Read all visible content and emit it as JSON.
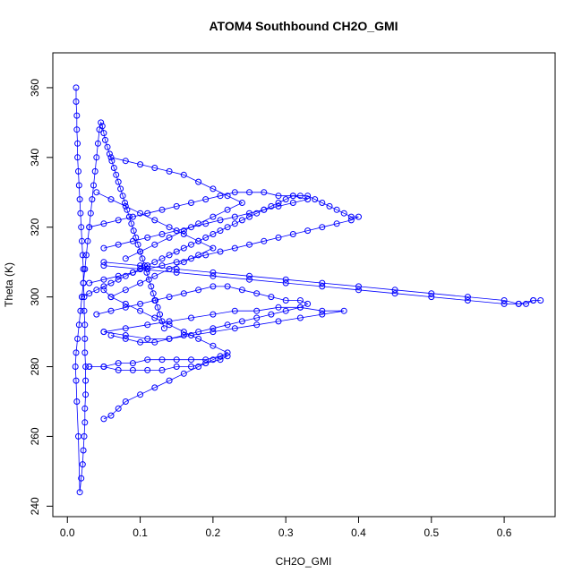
{
  "chart_data": {
    "type": "scatter",
    "title": "ATOM4 Southbound CH2O_GMI",
    "xlabel": "CH2O_GMI",
    "ylabel": "Theta (K)",
    "xlim": [
      -0.02,
      0.67
    ],
    "ylim": [
      237,
      370
    ],
    "xticks": [
      0.0,
      0.1,
      0.2,
      0.3,
      0.4,
      0.5,
      0.6
    ],
    "xtick_labels": [
      "0.0",
      "0.1",
      "0.2",
      "0.3",
      "0.4",
      "0.5",
      "0.6"
    ],
    "yticks": [
      240,
      260,
      280,
      300,
      320,
      340,
      360
    ],
    "ytick_labels": [
      "240",
      "260",
      "280",
      "300",
      "320",
      "340",
      "360"
    ],
    "grid": false,
    "legend": "none",
    "marker": "open-circle",
    "line": "connected",
    "colors": {
      "series": "#0000ff",
      "axis": "#000000"
    },
    "series": [
      {
        "x": [
          0.012,
          0.012,
          0.013,
          0.013,
          0.014,
          0.014,
          0.015,
          0.016,
          0.017,
          0.018,
          0.019,
          0.02,
          0.021,
          0.022,
          0.022,
          0.023,
          0.023,
          0.024,
          0.024,
          0.024,
          0.025,
          0.025,
          0.025,
          0.024,
          0.024,
          0.023,
          0.022,
          0.021,
          0.019,
          0.017,
          0.015,
          0.013,
          0.012,
          0.011,
          0.012,
          0.014,
          0.016,
          0.018,
          0.02,
          0.022,
          0.024,
          0.026,
          0.028,
          0.03,
          0.032,
          0.034,
          0.036,
          0.038,
          0.04,
          0.042,
          0.044,
          0.046,
          0.048,
          0.05,
          0.052,
          0.055,
          0.058,
          0.061,
          0.064,
          0.067,
          0.07,
          0.073,
          0.076,
          0.079,
          0.082,
          0.085,
          0.088,
          0.091,
          0.094,
          0.097,
          0.1,
          0.103,
          0.106,
          0.109,
          0.112,
          0.115,
          0.118,
          0.121,
          0.124,
          0.127,
          0.13,
          0.133
        ],
        "y": [
          360,
          356,
          352,
          348,
          344,
          340,
          336,
          332,
          328,
          324,
          320,
          316,
          312,
          308,
          304,
          300,
          296,
          292,
          288,
          284,
          280,
          276,
          272,
          268,
          264,
          260,
          256,
          252,
          248,
          244,
          260,
          270,
          276,
          280,
          284,
          288,
          292,
          296,
          300,
          304,
          308,
          312,
          316,
          320,
          324,
          328,
          332,
          336,
          340,
          344,
          348,
          350,
          349,
          347,
          345,
          343,
          341,
          339,
          337,
          335,
          333,
          331,
          329,
          327,
          325,
          323,
          321,
          319,
          317,
          315,
          313,
          311,
          309,
          307,
          305,
          303,
          301,
          299,
          297,
          295,
          293,
          291
        ]
      },
      {
        "x": [
          0.02,
          0.03,
          0.04,
          0.05,
          0.06,
          0.07,
          0.08,
          0.09,
          0.1,
          0.11,
          0.12,
          0.13,
          0.14,
          0.15,
          0.16,
          0.17,
          0.18,
          0.19,
          0.2,
          0.21,
          0.22,
          0.23,
          0.24,
          0.25,
          0.26,
          0.27,
          0.28,
          0.29,
          0.3,
          0.31,
          0.32,
          0.33,
          0.34,
          0.35,
          0.36,
          0.37,
          0.38,
          0.39,
          0.4,
          0.39,
          0.37,
          0.35,
          0.33,
          0.31,
          0.29,
          0.27,
          0.25,
          0.23,
          0.21,
          0.19,
          0.17,
          0.15,
          0.13,
          0.11,
          0.09,
          0.07,
          0.05,
          0.03
        ],
        "y": [
          300,
          301,
          302,
          303,
          304,
          305,
          306,
          307,
          308,
          309,
          310,
          311,
          312,
          313,
          314,
          315,
          316,
          317,
          318,
          319,
          320,
          321,
          322,
          323,
          324,
          325,
          326,
          327,
          328,
          329,
          329,
          329,
          328,
          327,
          326,
          325,
          324,
          323,
          323,
          322,
          321,
          320,
          319,
          318,
          317,
          316,
          315,
          314,
          313,
          312,
          311,
          310,
          309,
          308,
          307,
          306,
          305,
          304
        ]
      },
      {
        "x": [
          0.05,
          0.1,
          0.15,
          0.2,
          0.25,
          0.3,
          0.35,
          0.4,
          0.45,
          0.5,
          0.55,
          0.6,
          0.62,
          0.63,
          0.64,
          0.65,
          0.64,
          0.62,
          0.6,
          0.55,
          0.5,
          0.45,
          0.4,
          0.35,
          0.3,
          0.25,
          0.2,
          0.15,
          0.1,
          0.05
        ],
        "y": [
          310,
          309,
          308,
          307,
          306,
          305,
          304,
          303,
          302,
          301,
          300,
          299,
          298,
          298,
          299,
          299,
          299,
          298,
          298,
          299,
          300,
          301,
          302,
          303,
          304,
          305,
          306,
          307,
          308,
          309
        ]
      },
      {
        "x": [
          0.05,
          0.08,
          0.11,
          0.14,
          0.17,
          0.2,
          0.23,
          0.26,
          0.29,
          0.32,
          0.35,
          0.38,
          0.35,
          0.32,
          0.29,
          0.26,
          0.23,
          0.2,
          0.17,
          0.14,
          0.11,
          0.08,
          0.05
        ],
        "y": [
          290,
          291,
          292,
          293,
          294,
          295,
          296,
          296,
          297,
          297,
          296,
          296,
          295,
          294,
          293,
          292,
          291,
          290,
          289,
          288,
          288,
          289,
          290
        ]
      },
      {
        "x": [
          0.03,
          0.05,
          0.07,
          0.09,
          0.11,
          0.13,
          0.15,
          0.17,
          0.19,
          0.21,
          0.22,
          0.21,
          0.19,
          0.17,
          0.15,
          0.13,
          0.11,
          0.09,
          0.07,
          0.05,
          0.03
        ],
        "y": [
          280,
          280,
          281,
          281,
          282,
          282,
          282,
          282,
          282,
          283,
          283,
          282,
          281,
          280,
          280,
          279,
          279,
          279,
          279,
          280,
          280
        ]
      },
      {
        "x": [
          0.05,
          0.06,
          0.07,
          0.08,
          0.1,
          0.12,
          0.14,
          0.16,
          0.18,
          0.2,
          0.22,
          0.2,
          0.18,
          0.16,
          0.14,
          0.12,
          0.1,
          0.08,
          0.06,
          0.05
        ],
        "y": [
          265,
          266,
          268,
          270,
          272,
          274,
          276,
          278,
          280,
          282,
          284,
          286,
          288,
          290,
          292,
          294,
          296,
          298,
          300,
          302
        ]
      },
      {
        "x": [
          0.03,
          0.05,
          0.07,
          0.09,
          0.11,
          0.13,
          0.15,
          0.17,
          0.19,
          0.21,
          0.23,
          0.25,
          0.27,
          0.29,
          0.31,
          0.33,
          0.31,
          0.29,
          0.27,
          0.25,
          0.23,
          0.21,
          0.19,
          0.17,
          0.15,
          0.13,
          0.11,
          0.09,
          0.07,
          0.05
        ],
        "y": [
          320,
          321,
          322,
          323,
          324,
          325,
          326,
          327,
          328,
          329,
          330,
          330,
          330,
          329,
          329,
          328,
          327,
          326,
          325,
          324,
          323,
          322,
          321,
          320,
          319,
          318,
          317,
          316,
          315,
          314
        ]
      },
      {
        "x": [
          0.04,
          0.06,
          0.08,
          0.1,
          0.12,
          0.14,
          0.16,
          0.18,
          0.2,
          0.22,
          0.24,
          0.26,
          0.28,
          0.3,
          0.32,
          0.33,
          0.32,
          0.3,
          0.28,
          0.26,
          0.24,
          0.22,
          0.2,
          0.18,
          0.16,
          0.14,
          0.12,
          0.1,
          0.08,
          0.06
        ],
        "y": [
          295,
          296,
          297,
          298,
          299,
          300,
          301,
          302,
          303,
          303,
          302,
          301,
          300,
          299,
          299,
          298,
          297,
          296,
          295,
          294,
          293,
          292,
          291,
          290,
          289,
          288,
          287,
          287,
          288,
          289
        ]
      },
      {
        "x": [
          0.06,
          0.08,
          0.1,
          0.12,
          0.14,
          0.16,
          0.18,
          0.2,
          0.22,
          0.24,
          0.22,
          0.2,
          0.18,
          0.16,
          0.14,
          0.12,
          0.1,
          0.08
        ],
        "y": [
          340,
          339,
          338,
          337,
          336,
          335,
          333,
          331,
          329,
          327,
          325,
          323,
          321,
          319,
          317,
          315,
          313,
          311
        ]
      },
      {
        "x": [
          0.04,
          0.06,
          0.08,
          0.1,
          0.12,
          0.14,
          0.16,
          0.18,
          0.2,
          0.18,
          0.16,
          0.14,
          0.12,
          0.1,
          0.08,
          0.06
        ],
        "y": [
          330,
          328,
          326,
          324,
          322,
          320,
          318,
          316,
          314,
          312,
          310,
          308,
          306,
          304,
          302,
          300
        ]
      }
    ]
  }
}
